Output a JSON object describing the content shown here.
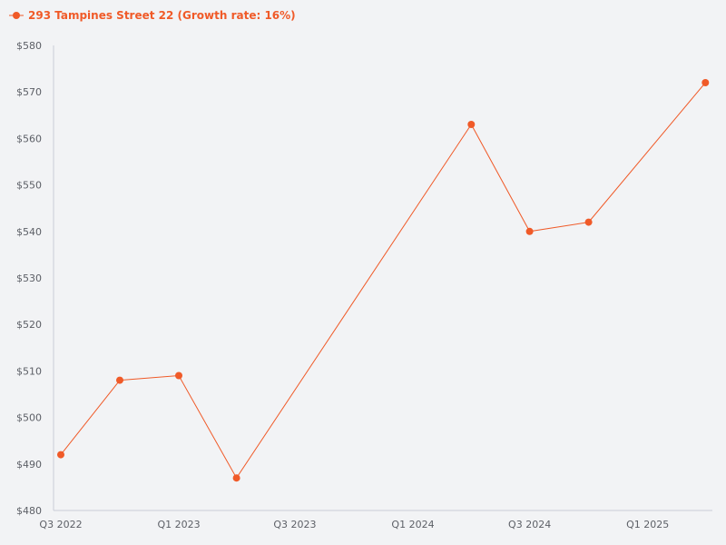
{
  "legend": {
    "label": "293 Tampines Street 22 (Growth rate: 16%)"
  },
  "colors": {
    "series": "#f05a28",
    "axis": "#c9ccd6",
    "tick_text": "#5c5f66",
    "background": "#f2f3f5"
  },
  "chart_data": {
    "type": "line",
    "title": "",
    "xlabel": "",
    "ylabel": "",
    "x": [
      "2022-07-01",
      "2022-10-01",
      "2023-01-01",
      "2023-04-01",
      "2024-04-01",
      "2024-07-01",
      "2024-10-01",
      "2025-04-01"
    ],
    "x_tick_labels": [
      {
        "label": "Q3 2022",
        "date": "2022-07-01"
      },
      {
        "label": "Q1 2023",
        "date": "2023-01-01"
      },
      {
        "label": "Q3 2023",
        "date": "2023-07-01"
      },
      {
        "label": "Q1 2024",
        "date": "2024-01-01"
      },
      {
        "label": "Q3 2024",
        "date": "2024-07-01"
      },
      {
        "label": "Q1 2025",
        "date": "2025-01-01"
      }
    ],
    "y_tick_labels": [
      "$480",
      "$490",
      "$500",
      "$510",
      "$520",
      "$530",
      "$540",
      "$550",
      "$560",
      "$570",
      "$580"
    ],
    "ylim": [
      480,
      580
    ],
    "grid": false,
    "legend_position": "top-left",
    "series": [
      {
        "name": "293 Tampines Street 22 (Growth rate: 16%)",
        "values": [
          492,
          508,
          509,
          487,
          563,
          540,
          542,
          572
        ]
      }
    ]
  }
}
